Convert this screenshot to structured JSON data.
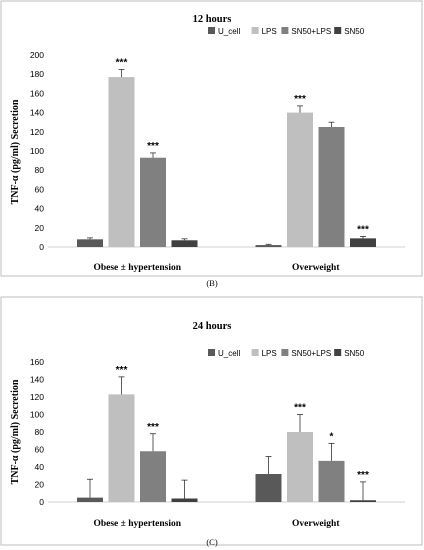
{
  "chart_data": [
    {
      "type": "bar",
      "title": "12 hours",
      "caption": "(B)",
      "ylabel": "TNF-α (pg/ml) Secretion",
      "categories": [
        "Obese ± hypertension",
        "Overweight"
      ],
      "ylim": [
        0,
        200
      ],
      "yticks": [
        0,
        20,
        40,
        60,
        80,
        100,
        120,
        140,
        160,
        180,
        200
      ],
      "legend_position": "top-right",
      "series": [
        {
          "name": "U_cell",
          "color": "#595959",
          "values": [
            8,
            2
          ],
          "errors": [
            1.5,
            0.8
          ],
          "sig": [
            "",
            ""
          ]
        },
        {
          "name": "LPS",
          "color": "#bfbfbf",
          "values": [
            177,
            140
          ],
          "errors": [
            8,
            7
          ],
          "sig": [
            "***",
            "***"
          ]
        },
        {
          "name": "SN50+LPS",
          "color": "#808080",
          "values": [
            93,
            125
          ],
          "errors": [
            5,
            5
          ],
          "sig": [
            "***",
            ""
          ]
        },
        {
          "name": "SN50",
          "color": "#404040",
          "values": [
            7,
            9
          ],
          "errors": [
            1.5,
            2
          ],
          "sig": [
            "",
            "***"
          ]
        }
      ]
    },
    {
      "type": "bar",
      "title": "24 hours",
      "caption": "(C)",
      "ylabel": "TNF-α (pg/ml) Secretion",
      "categories": [
        "Obese ± hypertension",
        "Overweight"
      ],
      "ylim": [
        0,
        160
      ],
      "yticks": [
        0,
        20,
        40,
        60,
        80,
        100,
        120,
        140,
        160
      ],
      "legend_position": "top-right",
      "series": [
        {
          "name": "U_cell",
          "color": "#595959",
          "values": [
            5,
            32
          ],
          "errors": [
            21,
            20
          ],
          "sig": [
            "",
            ""
          ]
        },
        {
          "name": "LPS",
          "color": "#bfbfbf",
          "values": [
            123,
            80
          ],
          "errors": [
            20,
            20
          ],
          "sig": [
            "***",
            "***"
          ]
        },
        {
          "name": "SN50+LPS",
          "color": "#808080",
          "values": [
            58,
            47
          ],
          "errors": [
            20,
            20
          ],
          "sig": [
            "***",
            "*"
          ]
        },
        {
          "name": "SN50",
          "color": "#404040",
          "values": [
            4,
            2
          ],
          "errors": [
            21,
            21
          ],
          "sig": [
            "",
            "***"
          ]
        }
      ]
    }
  ]
}
